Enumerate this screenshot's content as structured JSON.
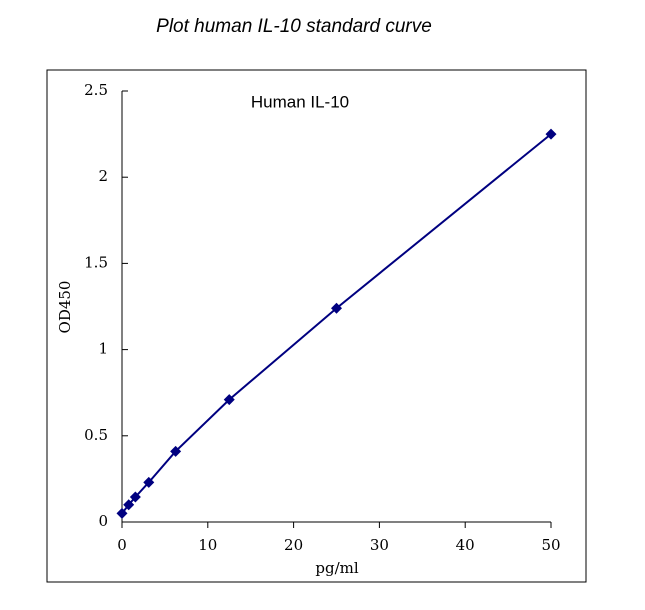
{
  "chart_data": {
    "type": "scatter",
    "title": "Plot human IL-10 standard curve",
    "annotation": "Human IL-10",
    "x_label": "pg/ml",
    "y_label": "OD450",
    "series": [
      {
        "name": "Human IL-10",
        "color": "#000080",
        "x": [
          0,
          0.78,
          1.56,
          3.12,
          6.25,
          12.5,
          25,
          50
        ],
        "values": [
          0.05,
          0.1,
          0.145,
          0.23,
          0.41,
          0.71,
          1.24,
          2.25
        ]
      }
    ],
    "xlim": [
      0,
      50
    ],
    "xticks": [
      0,
      10,
      20,
      30,
      40,
      50
    ],
    "ylim": [
      0,
      2.5
    ],
    "yticks": [
      0,
      0.5,
      1,
      1.5,
      2,
      2.5
    ],
    "grid": false
  }
}
